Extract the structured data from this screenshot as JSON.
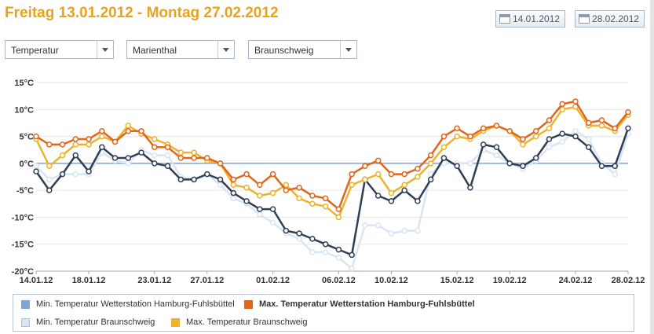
{
  "header": {
    "title": "Freitag 13.01.2012 - Montag 27.02.2012"
  },
  "date_buttons": {
    "start": "14.01.2012",
    "end": "28.02.2012"
  },
  "selects": [
    {
      "value": "Temperatur"
    },
    {
      "value": "Marienthal"
    },
    {
      "value": "Braunschweig"
    }
  ],
  "legend": {
    "items": [
      {
        "name": "Min. Temperatur Wetterstation Hamburg-Fuhlsbüttel",
        "color": "#7fa7d6",
        "bold": false
      },
      {
        "name": "Max. Temperatur Wetterstation Hamburg-Fuhlsbüttel",
        "color": "#e0661c",
        "bold": true
      },
      {
        "name": "Min. Temperatur Braunschweig",
        "color": "#d8e5f3",
        "bold": false
      },
      {
        "name": "Max. Temperatur Braunschweig",
        "color": "#edb32e",
        "bold": false
      }
    ]
  },
  "chart_data": {
    "type": "line",
    "x": [
      "14.01.12",
      "15.01.12",
      "16.01.12",
      "17.01.12",
      "18.01.12",
      "19.01.12",
      "20.01.12",
      "21.01.12",
      "22.01.12",
      "23.01.12",
      "24.01.12",
      "25.01.12",
      "26.01.12",
      "27.01.12",
      "28.01.12",
      "29.01.12",
      "30.01.12",
      "31.01.12",
      "01.02.12",
      "02.02.12",
      "03.02.12",
      "04.02.12",
      "05.02.12",
      "06.02.12",
      "07.02.12",
      "08.02.12",
      "09.02.12",
      "10.02.12",
      "11.02.12",
      "12.02.12",
      "13.02.12",
      "14.02.12",
      "15.02.12",
      "16.02.12",
      "17.02.12",
      "18.02.12",
      "19.02.12",
      "20.02.12",
      "21.02.12",
      "22.02.12",
      "23.02.12",
      "24.02.12",
      "25.02.12",
      "26.02.12",
      "27.02.12",
      "28.02.12"
    ],
    "x_tick_labels": [
      "14.01.12",
      "18.01.12",
      "23.01.12",
      "27.01.12",
      "01.02.12",
      "06.02.12",
      "10.02.12",
      "15.02.12",
      "19.02.12",
      "24.02.12",
      "28.02.12"
    ],
    "y_tick_labels": [
      "15°C",
      "10°C",
      "5°C",
      "0°C",
      "-5°C",
      "-10°C",
      "-15°C",
      "-20°C"
    ],
    "ylim": [
      -20,
      15
    ],
    "series": [
      {
        "name": "Max. Temperatur Wetterstation Hamburg-Fuhlsbüttel",
        "color": "#e0661c",
        "values": [
          5,
          3.5,
          3.5,
          4.5,
          4.5,
          6,
          4,
          6,
          6,
          3,
          3,
          1,
          1,
          1,
          0,
          -3,
          -2,
          -4,
          -2,
          -5,
          -4.5,
          -6,
          -6.5,
          -8.5,
          -2,
          -0.5,
          0.5,
          -2,
          -2,
          -1,
          1.5,
          5,
          6.5,
          5,
          6.5,
          7,
          6,
          4.5,
          6,
          8,
          11,
          11.5,
          7.5,
          8,
          6.5,
          9.5
        ]
      },
      {
        "name": "Max. Temperatur Braunschweig",
        "color": "#edb32e",
        "values": [
          4.5,
          -0.5,
          1.5,
          3.5,
          3.5,
          5,
          4,
          7,
          5.5,
          4.5,
          3.5,
          2,
          2,
          0.5,
          0,
          -4,
          -4.5,
          -6,
          -5.5,
          -4,
          -6.5,
          -7.5,
          -8,
          -10,
          -4,
          -3,
          -2,
          -5.5,
          -4,
          -2.5,
          0,
          3,
          5,
          4.5,
          6,
          7,
          6,
          3.5,
          5,
          6.5,
          10,
          10.5,
          7,
          7,
          6,
          9
        ]
      },
      {
        "name": "Min. Temperatur Wetterstation Hamburg-Fuhlsbüttel",
        "color": "#2f3f55",
        "values": [
          -1.5,
          -5,
          -2,
          1.5,
          -1.5,
          3,
          1,
          1,
          2,
          0,
          -0.5,
          -3,
          -3,
          -2,
          -3,
          -5.5,
          -7,
          -8.5,
          -8.5,
          -12.5,
          -13,
          -14,
          -15,
          -16,
          -17,
          -3,
          -6,
          -7,
          -5,
          -7,
          -3,
          1,
          -0.5,
          -4.5,
          3.5,
          3,
          0,
          -0.5,
          1,
          4.5,
          5.5,
          5,
          3,
          -0.5,
          -0.5,
          6.5
        ]
      },
      {
        "name": "Min. Temperatur Braunschweig",
        "color": "#d8e5f3",
        "values": [
          -0.5,
          -3,
          -2,
          -2,
          -2,
          2,
          0.5,
          0,
          2.5,
          1.5,
          1.5,
          -2.5,
          -3,
          -2,
          -4,
          -6.5,
          -7.5,
          -9.5,
          -11,
          -13,
          -14,
          -16.5,
          -16.5,
          -17.5,
          -19.5,
          -11.5,
          -11.5,
          -13,
          -12.5,
          -12.5,
          -2,
          0,
          0,
          0,
          2.5,
          1.5,
          0,
          -1,
          0.5,
          3,
          4,
          6,
          4.5,
          0,
          -2,
          5.5
        ]
      }
    ]
  }
}
